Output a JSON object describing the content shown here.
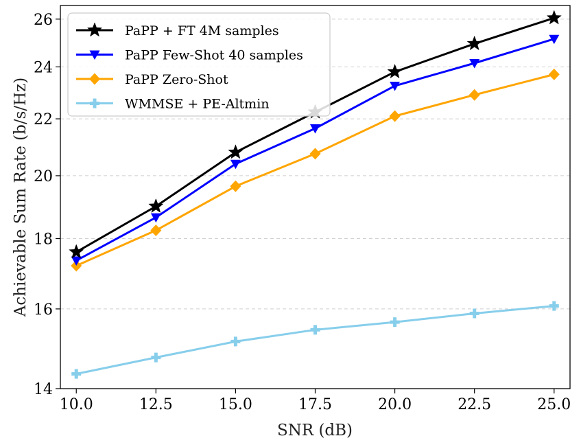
{
  "chart_data": {
    "type": "line",
    "title": "",
    "xlabel": "SNR (dB)",
    "ylabel": "Achievable Sum Rate (b/s/Hz)",
    "x": [
      10.0,
      12.5,
      15.0,
      17.5,
      20.0,
      22.5,
      25.0
    ],
    "xticks": [
      "10.0",
      "12.5",
      "15.0",
      "17.5",
      "20.0",
      "22.5",
      "25.0"
    ],
    "yticks": [
      "14",
      "16",
      "18",
      "20",
      "22",
      "24",
      "26"
    ],
    "ylim": [
      14,
      26.6
    ],
    "xlim": [
      9.5,
      25.5
    ],
    "yscale": "log",
    "grid": true,
    "legend_position": "top-left",
    "series": [
      {
        "name": "PaPP + FT 4M samples",
        "color": "#000000",
        "marker": "star",
        "values": [
          17.6,
          19.0,
          20.8,
          22.25,
          23.8,
          24.95,
          26.05
        ]
      },
      {
        "name": "PaPP Few-Shot 40 samples",
        "color": "#0000ff",
        "marker": "triangle-down",
        "values": [
          17.35,
          18.65,
          20.4,
          21.65,
          23.25,
          24.15,
          25.15
        ]
      },
      {
        "name": "PaPP Zero-Shot",
        "color": "#ffa500",
        "marker": "diamond",
        "values": [
          17.2,
          18.25,
          19.65,
          20.75,
          22.1,
          22.9,
          23.7
        ]
      },
      {
        "name": "WMMSE + PE-Altmin",
        "color": "#87ceeb",
        "marker": "plus",
        "values": [
          14.35,
          14.75,
          15.15,
          15.45,
          15.65,
          15.88,
          16.08
        ]
      }
    ]
  }
}
